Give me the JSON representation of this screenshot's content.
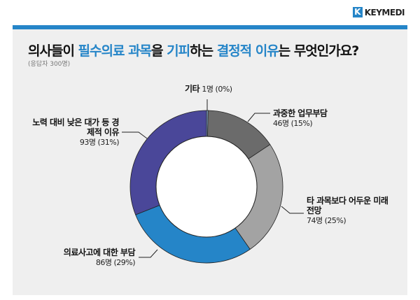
{
  "brand": "KEYMEDI",
  "title_parts": [
    "의사들이 ",
    "필수의료 과목",
    "을 ",
    "기피",
    "하는 ",
    "결정적 이유",
    "는 무엇인가요?"
  ],
  "subtitle": "(응답자 300명)",
  "chart_data": {
    "type": "pie",
    "donut": true,
    "title": "의사들이 필수의료 과목을 기피하는 결정적 이유는 무엇인가요?",
    "total": 300,
    "slices": [
      {
        "label": "기타",
        "value": 1,
        "pct": "0%",
        "display": "1명 (0%)",
        "color": "#8fb7de"
      },
      {
        "label": "과중한 업무부담",
        "value": 46,
        "pct": "15%",
        "display": "46명 (15%)",
        "color": "#6b6b6b"
      },
      {
        "label": "타 과목보다 어두운 미래전망",
        "value": 74,
        "pct": "25%",
        "display": "74명 (25%)",
        "color": "#a3a3a3"
      },
      {
        "label": "의료사고에 대한 부담",
        "value": 86,
        "pct": "29%",
        "display": "86명 (29%)",
        "color": "#2585c8"
      },
      {
        "label": "노력 대비 낮은 대가 등 경제적 이유",
        "value": 93,
        "pct": "31%",
        "display": "93명 (31%)",
        "color": "#4a4799"
      }
    ]
  }
}
